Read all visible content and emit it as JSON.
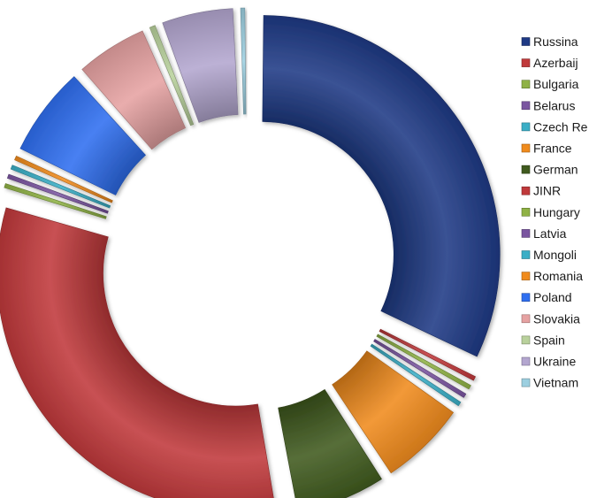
{
  "chart_data": {
    "type": "pie",
    "variant": "exploded-doughnut",
    "legend_position": "right",
    "categories": [
      "Russina",
      "Azerbaijan",
      "Bulgaria",
      "Belarus",
      "Czech Republic",
      "France",
      "Germany",
      "JINR",
      "Hungary",
      "Latvia",
      "Mongolia",
      "Romania",
      "Poland",
      "Slovakia",
      "Spain",
      "Ukraine",
      "Vietnam"
    ],
    "legend_labels": [
      "Russina",
      "Azerbaij",
      "Bulgaria",
      "Belarus",
      "Czech Re",
      "France",
      "German",
      "JINR",
      "Hungary",
      "Latvia",
      "Mongoli",
      "Romania",
      "Poland",
      "Slovakia",
      "Spain",
      "Ukraine",
      "Vietnam"
    ],
    "values": [
      31.4,
      0.6,
      0.6,
      0.6,
      0.6,
      6.0,
      6.2,
      31.6,
      0.6,
      0.6,
      0.6,
      0.6,
      6.2,
      5.0,
      0.7,
      5.0,
      0.6
    ],
    "colors": [
      "#1f3a85",
      "#c0393b",
      "#8fb245",
      "#7a55a0",
      "#3aaec6",
      "#f08b1d",
      "#405a1e",
      "#c0393b",
      "#8fb245",
      "#7a55a0",
      "#3aaec6",
      "#f08b1d",
      "#2f6ff0",
      "#e6a2a2",
      "#b9d19c",
      "#b3a6cf",
      "#9ccfe0"
    ]
  }
}
